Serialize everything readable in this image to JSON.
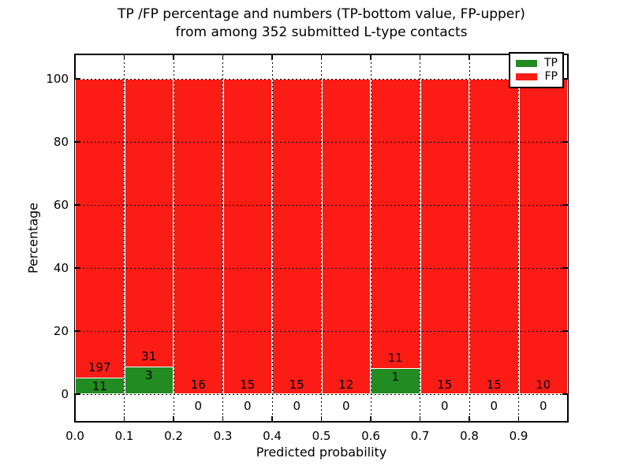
{
  "title": {
    "line1": "TP /FP percentage and numbers (TP-bottom value, FP-upper)",
    "line2": "from among 352 submitted L-type contacts"
  },
  "chart_data": {
    "type": "bar",
    "stacked": true,
    "normalized_to_percent": true,
    "title": "TP /FP percentage and numbers (TP-bottom value, FP-upper)\nfrom among 352 submitted L-type contacts",
    "xlabel": "Predicted probability",
    "ylabel": "Percentage",
    "total_contacts": 352,
    "xlim": [
      0.0,
      1.0
    ],
    "ylim": [
      -9,
      108
    ],
    "grid": "dotted",
    "bin_width": 0.1,
    "x_tick_labels": [
      "0.0",
      "0.1",
      "0.2",
      "0.3",
      "0.4",
      "0.5",
      "0.6",
      "0.7",
      "0.8",
      "0.9"
    ],
    "y_ticks": [
      0,
      20,
      40,
      60,
      80,
      100
    ],
    "series_names": [
      "TP",
      "FP"
    ],
    "bins": [
      {
        "x_start": 0.0,
        "tp": 11,
        "fp": 197,
        "tp_percent": 5.3
      },
      {
        "x_start": 0.1,
        "tp": 3,
        "fp": 31,
        "tp_percent": 8.8
      },
      {
        "x_start": 0.2,
        "tp": 0,
        "fp": 16,
        "tp_percent": 0
      },
      {
        "x_start": 0.3,
        "tp": 0,
        "fp": 15,
        "tp_percent": 0
      },
      {
        "x_start": 0.4,
        "tp": 0,
        "fp": 15,
        "tp_percent": 0
      },
      {
        "x_start": 0.5,
        "tp": 0,
        "fp": 12,
        "tp_percent": 0
      },
      {
        "x_start": 0.6,
        "tp": 1,
        "fp": 11,
        "tp_percent": 8.3
      },
      {
        "x_start": 0.7,
        "tp": 0,
        "fp": 15,
        "tp_percent": 0
      },
      {
        "x_start": 0.8,
        "tp": 0,
        "fp": 15,
        "tp_percent": 0
      },
      {
        "x_start": 0.9,
        "tp": 0,
        "fp": 10,
        "tp_percent": 0
      }
    ],
    "colors": {
      "tp": "#228b22",
      "fp": "#fb1d15",
      "grid": "#000000",
      "bar_edge": "#ffffff",
      "background": "#ffffff"
    },
    "legend": {
      "position": "upper right",
      "entries": [
        {
          "label": "TP",
          "color": "#228b22"
        },
        {
          "label": "FP",
          "color": "#fb1d15"
        }
      ]
    }
  }
}
